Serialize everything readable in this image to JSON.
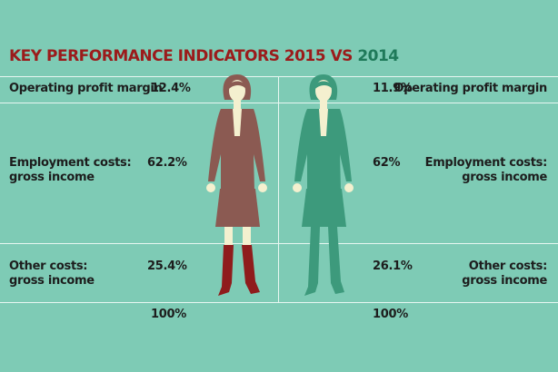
{
  "title": {
    "part1": "KEY PERFORMANCE INDICATORS 2015 VS",
    "part2": "2014"
  },
  "colors": {
    "background": "#7ecbb5",
    "year_2015": "#8b5a52",
    "year_2014": "#3d9a7c",
    "boots_2015": "#8f1c1c",
    "title_2015": "#9b1b1b",
    "title_2014": "#1f7a5a"
  },
  "chart_data": {
    "type": "table",
    "title": "KEY PERFORMANCE INDICATORS 2015 VS 2014",
    "columns": [
      "2015",
      "2014"
    ],
    "rows": [
      {
        "label_left": "Operating profit margin",
        "label_right": "Operating profit margin",
        "v2015": "12.4%",
        "v2014": "11.9%"
      },
      {
        "label_left": [
          "Employment costs:",
          "gross income"
        ],
        "label_right": [
          "Employment costs:",
          "gross income"
        ],
        "v2015": "62.2%",
        "v2014": "62%"
      },
      {
        "label_left": [
          "Other costs:",
          "gross income"
        ],
        "label_right": [
          "Other costs:",
          "gross income"
        ],
        "v2015": "25.4%",
        "v2014": "26.1%"
      }
    ],
    "totals": {
      "v2015": "100%",
      "v2014": "100%"
    }
  }
}
